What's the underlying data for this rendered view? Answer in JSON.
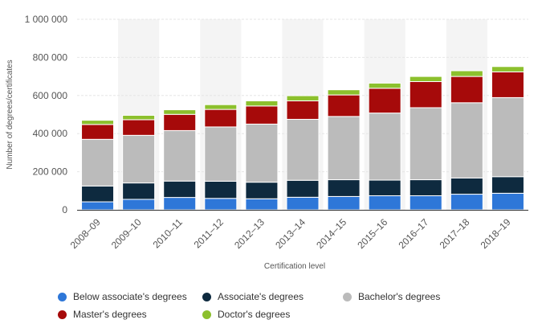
{
  "chart_data": {
    "type": "bar",
    "stacked": true,
    "categories": [
      "2008–09",
      "2009–10",
      "2010–11",
      "2011–12",
      "2012–13",
      "2013–14",
      "2014–15",
      "2015–16",
      "2016–17",
      "2017–18",
      "2018–19"
    ],
    "series": [
      {
        "name": "Below associate's degrees",
        "color": "#2e77d8",
        "values": [
          42000,
          55000,
          65000,
          60000,
          58000,
          66000,
          70000,
          74000,
          74000,
          82000,
          87000
        ]
      },
      {
        "name": "Associate's degrees",
        "color": "#0e2a3f",
        "values": [
          83000,
          86000,
          86000,
          90000,
          87000,
          89000,
          88000,
          82000,
          84000,
          85000,
          87000
        ]
      },
      {
        "name": "Bachelor's degrees",
        "color": "#bbbbbb",
        "values": [
          245000,
          250000,
          265000,
          285000,
          305000,
          320000,
          332000,
          352000,
          378000,
          395000,
          415000
        ]
      },
      {
        "name": "Master's degrees",
        "color": "#a60a0a",
        "values": [
          78000,
          82000,
          85000,
          92000,
          95000,
          97000,
          113000,
          130000,
          137000,
          138000,
          135000
        ]
      },
      {
        "name": "Doctor's degrees",
        "color": "#8cc02d",
        "values": [
          22000,
          23000,
          24000,
          25000,
          27000,
          27000,
          27000,
          27000,
          27000,
          30000,
          28000
        ]
      }
    ],
    "xlabel": "Certification level",
    "ylabel": "Number of degrees/certificates",
    "ylim": [
      0,
      1000000
    ],
    "yticks": [
      0,
      200000,
      400000,
      600000,
      800000,
      1000000
    ],
    "ytick_labels": [
      "0",
      "200 000",
      "400 000",
      "600 000",
      "800 000",
      "1 000 000"
    ],
    "grid": true,
    "legend_position": "bottom",
    "colors": {
      "grid": "#e6e6e6",
      "band": "#f4f4f4",
      "axis_text": "#555555",
      "axis_line": "#333333"
    }
  }
}
